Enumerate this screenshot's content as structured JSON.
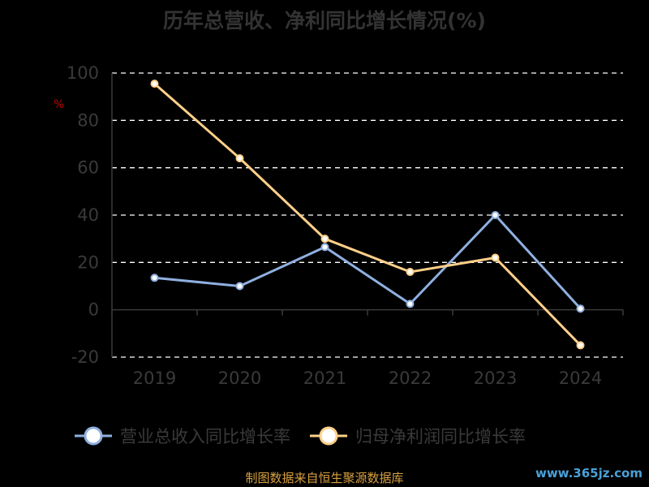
{
  "title": "历年总营收、净利同比增长情况(%)",
  "unit_label": "%",
  "source": "制图数据来自恒生聚源数据库",
  "watermark": "www.365jz.com",
  "colors": {
    "background": "#000000",
    "revenue": "#8fb0e0",
    "profit": "#ffd08a",
    "grid": "#ffffff",
    "axis_text": "#3a3a3a",
    "unit": "#c00000"
  },
  "chart_data": {
    "type": "line",
    "categories": [
      "2019",
      "2020",
      "2021",
      "2022",
      "2023",
      "2024"
    ],
    "ylim": [
      -20,
      100
    ],
    "yticks": [
      -20,
      0,
      20,
      40,
      60,
      80,
      100
    ],
    "grid": true,
    "legend_position": "bottom",
    "series": [
      {
        "name": "营业总收入同比增长率",
        "color": "#8fb0e0",
        "values": [
          13.5,
          10,
          26.5,
          2.5,
          40,
          0.5
        ]
      },
      {
        "name": "归母净利润同比增长率",
        "color": "#ffd08a",
        "values": [
          95.5,
          64,
          30,
          16,
          22,
          -15
        ]
      }
    ]
  }
}
